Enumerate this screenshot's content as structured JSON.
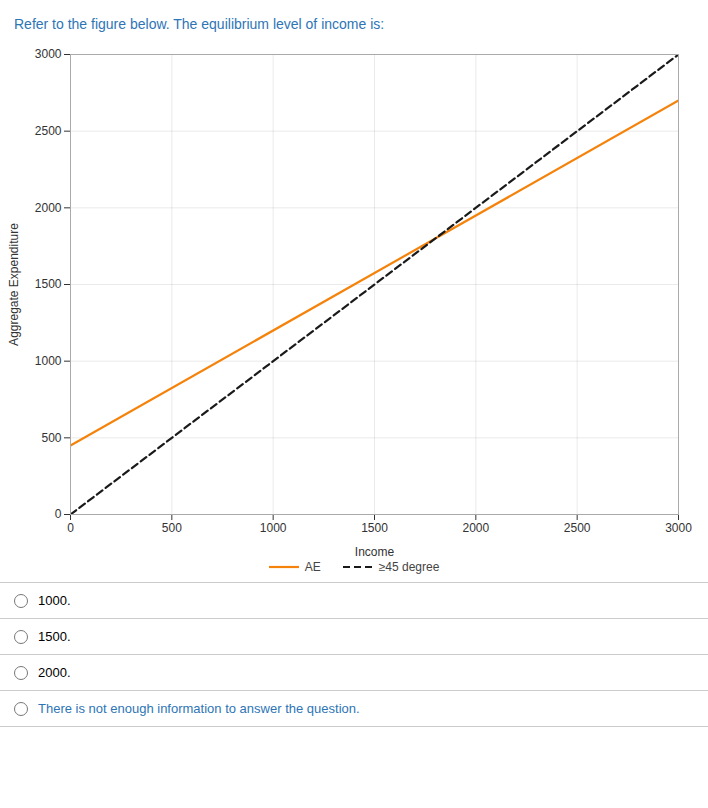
{
  "chart_data": {
    "type": "line",
    "title": "Refer to the figure below. The equilibrium level of income is:",
    "xlabel": "Income",
    "ylabel": "Aggregate Expenditure",
    "x": [
      0,
      3000
    ],
    "series": [
      {
        "name": "AE",
        "color": "#F5820A",
        "line_style": "solid",
        "values": [
          450,
          2700
        ]
      },
      {
        "name": "≥45 degree",
        "color": "#1a1a1a",
        "line_style": "dashed",
        "values": [
          0,
          3000
        ]
      }
    ],
    "xlim": [
      0,
      3000
    ],
    "ylim": [
      0,
      3000
    ],
    "xticks": [
      0,
      500,
      1000,
      1500,
      2000,
      2500,
      3000
    ],
    "yticks": [
      0,
      500,
      1000,
      1500,
      2000,
      2500,
      3000
    ],
    "grid": true,
    "legend": "bottom",
    "annotations": [
      {
        "text": "1000.",
        "color": "#000000"
      },
      {
        "text": "1500.",
        "color": "#000000"
      },
      {
        "text": "2000.",
        "color": "#000000"
      },
      {
        "text": "There is not enough information to answer the question.",
        "color": "#2e75b6"
      }
    ]
  }
}
